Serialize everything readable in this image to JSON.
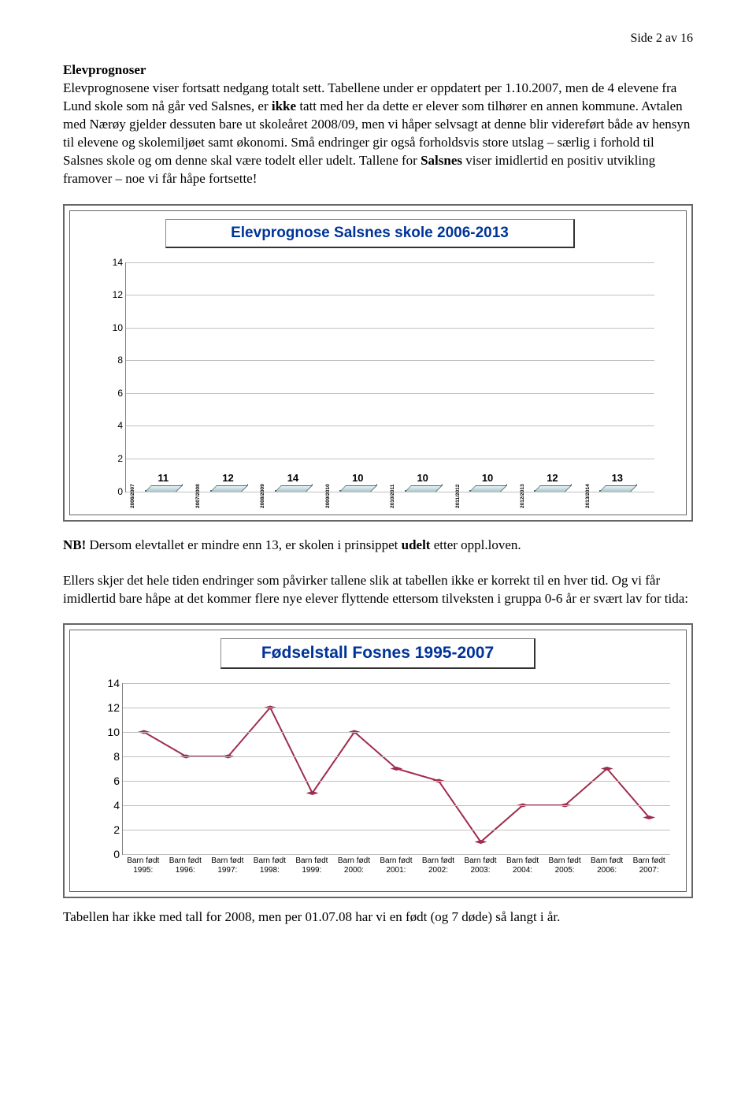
{
  "page_header": "Side 2 av 16",
  "section_title": "Elevprognoser",
  "paragraph1_html": "Elevprognosene viser fortsatt nedgang totalt sett. Tabellene under er oppdatert per 1.10.2007, men de 4 elevene fra Lund skole som nå går ved Salsnes, er <b>ikke</b> tatt med her da dette er elever som tilhører en annen kommune. Avtalen med Nærøy gjelder dessuten bare ut skoleåret 2008/09, men vi håper selvsagt at denne blir videreført både av hensyn til elevene og skolemiljøet samt økonomi. Små endringer gir også forholdsvis store utslag – særlig i forhold til Salsnes skole og om denne skal være todelt eller udelt. Tallene for <b>Salsnes</b> viser imidlertid en positiv utvikling framover – noe vi får håpe fortsette!",
  "bar_chart": {
    "type": "bar",
    "title": "Elevprognose Salsnes skole 2006-2013",
    "title_color": "#003399",
    "title_fontsize": 19,
    "categories": [
      "2006/2007",
      "2007/2008",
      "2008/2009",
      "2009/2010",
      "2010/2011",
      "2011/2012",
      "2012/2013",
      "2013/2014"
    ],
    "values": [
      11,
      12,
      14,
      10,
      10,
      10,
      12,
      13
    ],
    "ylim": [
      0,
      14
    ],
    "ytick_step": 2,
    "bar_fill_gradient": [
      "#8db4bd",
      "#d7e8ec",
      "#5f939e"
    ],
    "bar_border": "#4a6a72",
    "grid_color": "#c0c0c0",
    "background_color": "#ffffff",
    "value_label_fontsize": 13,
    "xlabel_fontsize": 6.5,
    "ylabel_fontsize": 12
  },
  "nb_text_html": "<b>NB!</b> Dersom elevtallet er mindre enn 13, er skolen i prinsippet <b>udelt</b> etter oppl.loven.",
  "paragraph2": "Ellers skjer det hele tiden endringer som påvirker tallene slik at tabellen ikke er korrekt til en hver tid. Og vi får imidlertid bare håpe at det kommer flere nye elever flyttende ettersom tilveksten i gruppa 0-6 år er svært lav for tida:",
  "line_chart": {
    "type": "line",
    "title": "Fødselstall Fosnes 1995-2007",
    "title_color": "#003399",
    "title_fontsize": 21,
    "categories": [
      "Barn født 1995:",
      "Barn født 1996:",
      "Barn født 1997:",
      "Barn født 1998:",
      "Barn født 1999:",
      "Barn født 2000:",
      "Barn født 2001:",
      "Barn født 2002:",
      "Barn født 2003:",
      "Barn født 2004:",
      "Barn født 2005:",
      "Barn født 2006:",
      "Barn født 2007:"
    ],
    "values": [
      10,
      8,
      8,
      12,
      5,
      10,
      7,
      6,
      1,
      4,
      4,
      7,
      3
    ],
    "ylim": [
      0,
      14
    ],
    "ytick_step": 2,
    "line_color": "#9f2d4d",
    "marker_color": "#9f2d4d",
    "marker_shape": "diamond",
    "marker_size": 8,
    "line_width": 2,
    "grid_color": "#c0c0c0",
    "background_color": "#ffffff",
    "xlabel_fontsize": 10,
    "ylabel_fontsize": 14
  },
  "footer": "Tabellen har ikke med tall for 2008, men per 01.07.08 har vi en født (og 7 døde) så langt i år."
}
